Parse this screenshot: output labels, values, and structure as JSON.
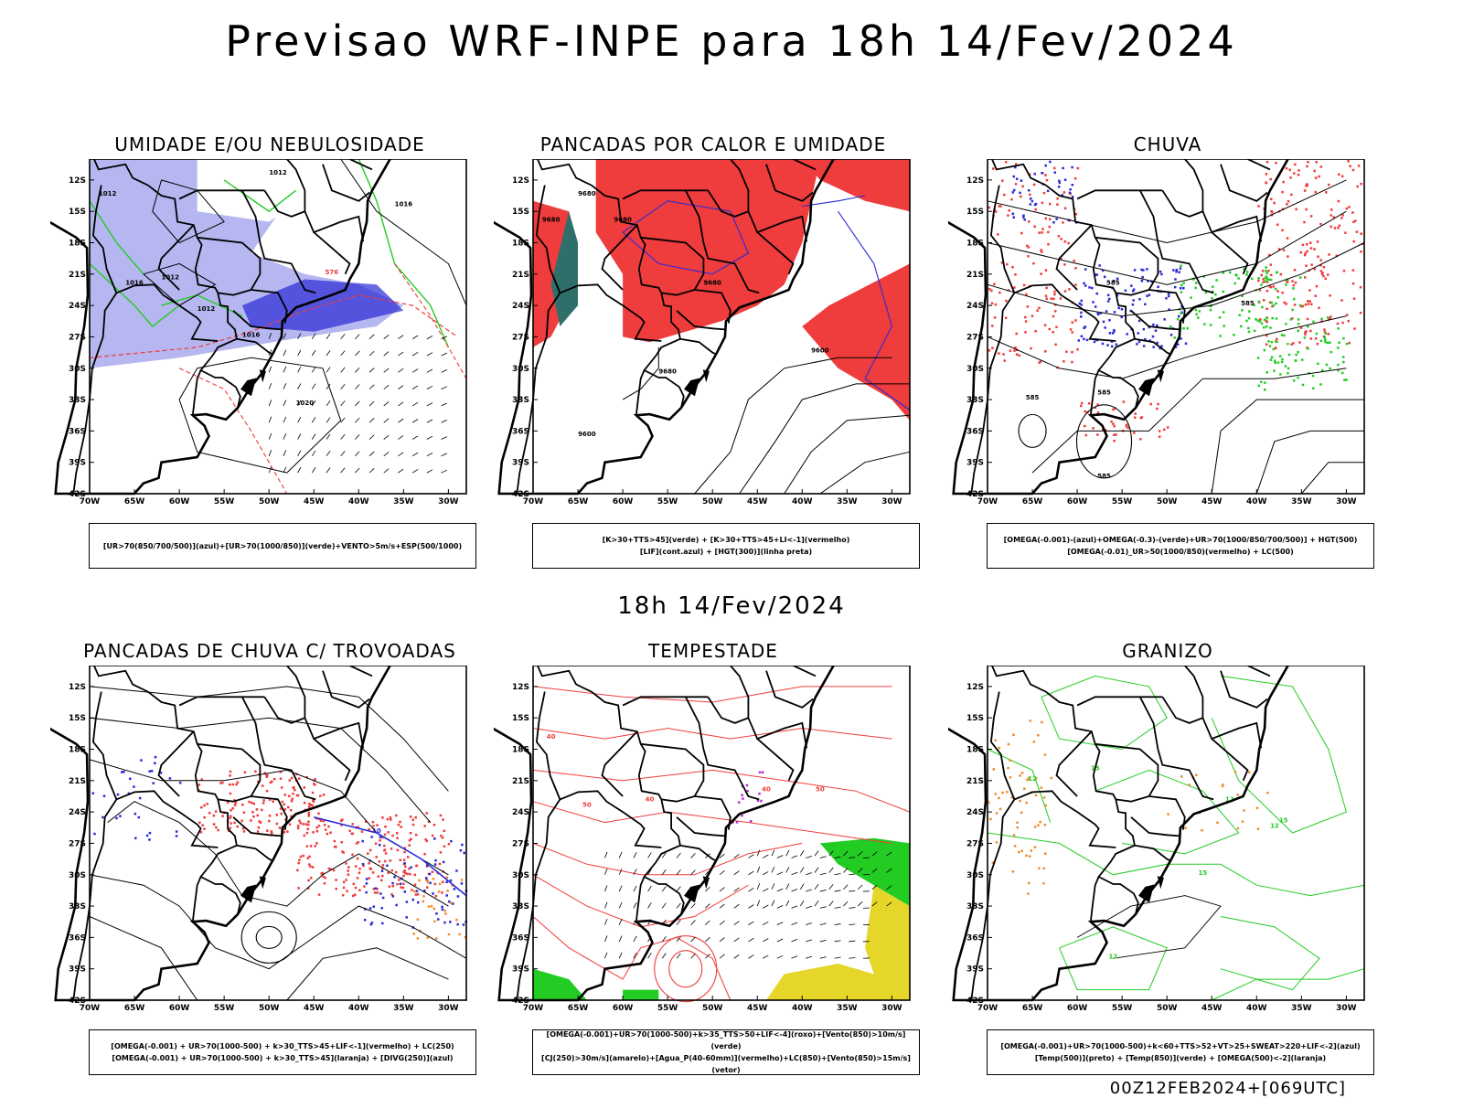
{
  "header": {
    "title": "Previsao WRF-INPE  para 18h 14/Fev/2024"
  },
  "middle": {
    "title": "18h 14/Fev/2024"
  },
  "footer": {
    "run": "00Z12FEB2024+[069UTC]"
  },
  "axes": {
    "lat_labels": [
      "12S",
      "15S",
      "18S",
      "21S",
      "24S",
      "27S",
      "30S",
      "33S",
      "36S",
      "39S",
      "42S"
    ],
    "lon_labels": [
      "70W",
      "65W",
      "60W",
      "55W",
      "50W",
      "45W",
      "40W",
      "35W",
      "30W"
    ],
    "lat_range": [
      -42,
      -10
    ],
    "lon_range": [
      -70,
      -28
    ]
  },
  "panels": [
    {
      "title": "UMIDADE E/OU NEBULOSIDADE",
      "legend": [
        "[UR>70(850/700/500)](azul)+[UR>70(1000/850)](verde)+VENTO>5m/s+ESP(500/1000)"
      ],
      "contour_labels": [
        "1012",
        "1012",
        "1016",
        "1012",
        "1016",
        "1020",
        "1016",
        "1012",
        "576"
      ]
    },
    {
      "title": "PANCADAS POR CALOR E UMIDADE",
      "legend": [
        "[K>30+TTS>45](verde) + [K>30+TTS>45+LI<-1](vermelho)",
        "[LIF](cont.azul) + [HGT(300)](linha preta)"
      ],
      "contour_labels": [
        "9680",
        "9680",
        "9680",
        "9680",
        "9600",
        "9680",
        "9600"
      ]
    },
    {
      "title": "CHUVA",
      "legend": [
        "[OMEGA(-0.001)-(azul)+OMEGA(-0.3)-(verde)+UR>70(1000/850/700/500)] + HGT(500)",
        "[OMEGA(-0.01)_UR>50(1000/850)(vermelho) + LC(500)"
      ],
      "contour_labels": [
        "585",
        "585",
        "585",
        "585",
        "585"
      ]
    },
    {
      "title": "PANCADAS DE CHUVA C/ TROVOADAS",
      "legend": [
        "[OMEGA(-0.001) + UR>70(1000-500) + k>30_TTS>45+LIF<-1](vermelho) + LC(250)",
        "[OMEGA(-0.001) + UR>70(1000-500) + k>30_TTS>45](laranja) + [DIVG(250)](azul)"
      ],
      "contour_labels": [
        "10"
      ]
    },
    {
      "title": "TEMPESTADE",
      "legend": [
        "[OMEGA(-0.001)+UR>70(1000-500)+k>35_TTS>50+LIF<-4](roxo)+[Vento(850)>10m/s](verde)",
        "[CJ(250)>30m/s](amarelo)+[Agua_P(40-60mm)](vermelho)+LC(850)+[Vento(850)>15m/s](vetor)"
      ],
      "contour_labels": [
        "40",
        "50",
        "40",
        "40",
        "50"
      ]
    },
    {
      "title": "GRANIZO",
      "legend": [
        "[OMEGA(-0.001)+UR>70(1000-500)+k<60+TTS>52+VT>25+SWEAT>220+LIF<-2](azul)",
        "[Temp(500)](preto) + [Temp(850)](verde) + [OMEGA(500)<-2](laranja)"
      ],
      "contour_labels": [
        "12",
        "15",
        "12",
        "12",
        "15",
        "12",
        "15"
      ]
    }
  ],
  "colors": {
    "blue_fill": "#a9a9ef",
    "dark_blue": "#2a2ad6",
    "green": "#22cc22",
    "red": "#ef3c3c",
    "teal": "#2f6f6a",
    "yellow": "#e6d629",
    "orange": "#f08c2c",
    "purple": "#b030d0"
  }
}
